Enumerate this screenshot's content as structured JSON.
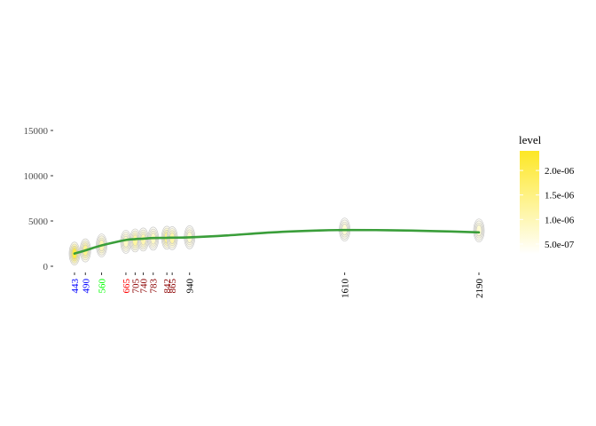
{
  "chart_data": {
    "type": "line",
    "title": "",
    "xlabel": "",
    "ylabel": "",
    "ylim": [
      0,
      15000
    ],
    "grid": false,
    "y_ticks": [
      0,
      5000,
      10000,
      15000
    ],
    "y_tick_labels": [
      "0",
      "5000",
      "10000",
      "15000"
    ],
    "x_ticks": [
      {
        "value": 443,
        "label": "443",
        "color": "#0000ff"
      },
      {
        "value": 490,
        "label": "490",
        "color": "#0000ff"
      },
      {
        "value": 560,
        "label": "560",
        "color": "#00ff00"
      },
      {
        "value": 665,
        "label": "665",
        "color": "#ff0000"
      },
      {
        "value": 705,
        "label": "705",
        "color": "#8b0000"
      },
      {
        "value": 740,
        "label": "740",
        "color": "#8b0000"
      },
      {
        "value": 783,
        "label": "783",
        "color": "#8b0000"
      },
      {
        "value": 842,
        "label": "842",
        "color": "#8b0000"
      },
      {
        "value": 865,
        "label": "865",
        "color": "#8b0000"
      },
      {
        "value": 940,
        "label": "940",
        "color": "#000000"
      },
      {
        "value": 1610,
        "label": "1610",
        "color": "#000000"
      },
      {
        "value": 2190,
        "label": "2190",
        "color": "#000000"
      }
    ],
    "series": [
      {
        "color": "#3a9e3a",
        "x": [
          443,
          490,
          560,
          665,
          705,
          740,
          783,
          842,
          865,
          940,
          1100,
          1300,
          1500,
          1610,
          1800,
          2000,
          2190
        ],
        "y": [
          1400,
          1750,
          2300,
          2900,
          3000,
          3050,
          3120,
          3150,
          3160,
          3200,
          3400,
          3750,
          3950,
          4000,
          3980,
          3880,
          3750
        ]
      }
    ],
    "density_blobs": [
      {
        "x": 443,
        "y": 1400,
        "peak": 2.4e-06
      },
      {
        "x": 490,
        "y": 1750,
        "peak": 1.6e-06
      },
      {
        "x": 560,
        "y": 2300,
        "peak": 1.2e-06
      },
      {
        "x": 665,
        "y": 2700,
        "peak": 1e-06
      },
      {
        "x": 705,
        "y": 2850,
        "peak": 1.4e-06
      },
      {
        "x": 740,
        "y": 2950,
        "peak": 1.2e-06
      },
      {
        "x": 783,
        "y": 3050,
        "peak": 1e-06
      },
      {
        "x": 842,
        "y": 3150,
        "peak": 1.6e-06
      },
      {
        "x": 865,
        "y": 3100,
        "peak": 1.3e-06
      },
      {
        "x": 940,
        "y": 3200,
        "peak": 9e-07
      },
      {
        "x": 1610,
        "y": 4050,
        "peak": 8e-07
      },
      {
        "x": 2190,
        "y": 3950,
        "peak": 8e-07
      }
    ],
    "legend": {
      "title": "level",
      "placement": "right",
      "range": [
        3e-07,
        2.4e-06
      ],
      "ticks": [
        5e-07,
        1e-06,
        1.5e-06,
        2e-06
      ],
      "tick_labels": [
        "5.0e-07",
        "1.0e-06",
        "1.5e-06",
        "2.0e-06"
      ],
      "color_low": "#ffffff",
      "color_high": "#fde725"
    }
  }
}
